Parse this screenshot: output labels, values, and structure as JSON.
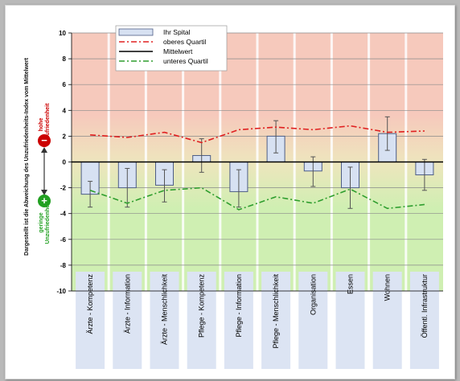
{
  "chart_data": {
    "type": "bar",
    "ylabel": "Dargestellt ist die Abweichung des Unzufriedenheits-Index vom Mittelwert",
    "ylim": [
      -10,
      10
    ],
    "yticks": [
      10,
      8,
      6,
      4,
      2,
      0,
      -2,
      -4,
      -6,
      -8,
      -10
    ],
    "grid": true,
    "legend_position": "top-left",
    "categories": [
      "Ärzte - Kompetenz",
      "Ärzte - Information",
      "Ärzte - Menschlichkeit",
      "Pflege - Kompetenz",
      "Pflege - Information",
      "Pflege - Menschlichkeit",
      "Organisation",
      "Essen",
      "Wohnen",
      "Öffentl. Infrastruktur"
    ],
    "series": [
      {
        "name": "Ihr Spital",
        "kind": "bar",
        "values": [
          -2.5,
          -2.0,
          -1.8,
          0.5,
          -2.3,
          2.0,
          -0.7,
          -2.0,
          2.2,
          -1.0
        ],
        "error_low": [
          -3.5,
          -3.5,
          -3.1,
          -0.8,
          -3.5,
          0.7,
          -1.9,
          -3.6,
          0.9,
          -2.2
        ],
        "error_high": [
          -1.5,
          -0.5,
          -0.6,
          1.8,
          -0.6,
          3.2,
          0.4,
          -0.4,
          3.5,
          0.2
        ]
      },
      {
        "name": "oberes Quartil",
        "kind": "line",
        "style": "dash-dot",
        "color": "#e02020",
        "values": [
          2.1,
          1.9,
          2.3,
          1.5,
          2.5,
          2.7,
          2.5,
          2.8,
          2.3,
          2.4
        ]
      },
      {
        "name": "Mittelwert",
        "kind": "line",
        "style": "solid",
        "color": "#000000",
        "values": [
          0,
          0,
          0,
          0,
          0,
          0,
          0,
          0,
          0,
          0
        ]
      },
      {
        "name": "unteres Quartil",
        "kind": "line",
        "style": "dash-dot",
        "color": "#2e9e2e",
        "values": [
          -2.2,
          -3.2,
          -2.2,
          -2.0,
          -3.7,
          -2.7,
          -3.2,
          -2.1,
          -3.6,
          -3.3
        ]
      }
    ],
    "side_annotations": {
      "high": {
        "label": "hohe Unzufriedenheit",
        "symbol": "−",
        "color": "#cc0000"
      },
      "low": {
        "label": "geringe Unzufriedenheit",
        "symbol": "+",
        "color": "#22a022"
      }
    },
    "colors": {
      "top": "#f6c9bc",
      "middle": "#eee5bd",
      "bottom": "#cfefb2",
      "bar_fill": "#d7e1f2",
      "bar_stroke": "#4d5d86",
      "label_box": "#dce4f3"
    }
  }
}
